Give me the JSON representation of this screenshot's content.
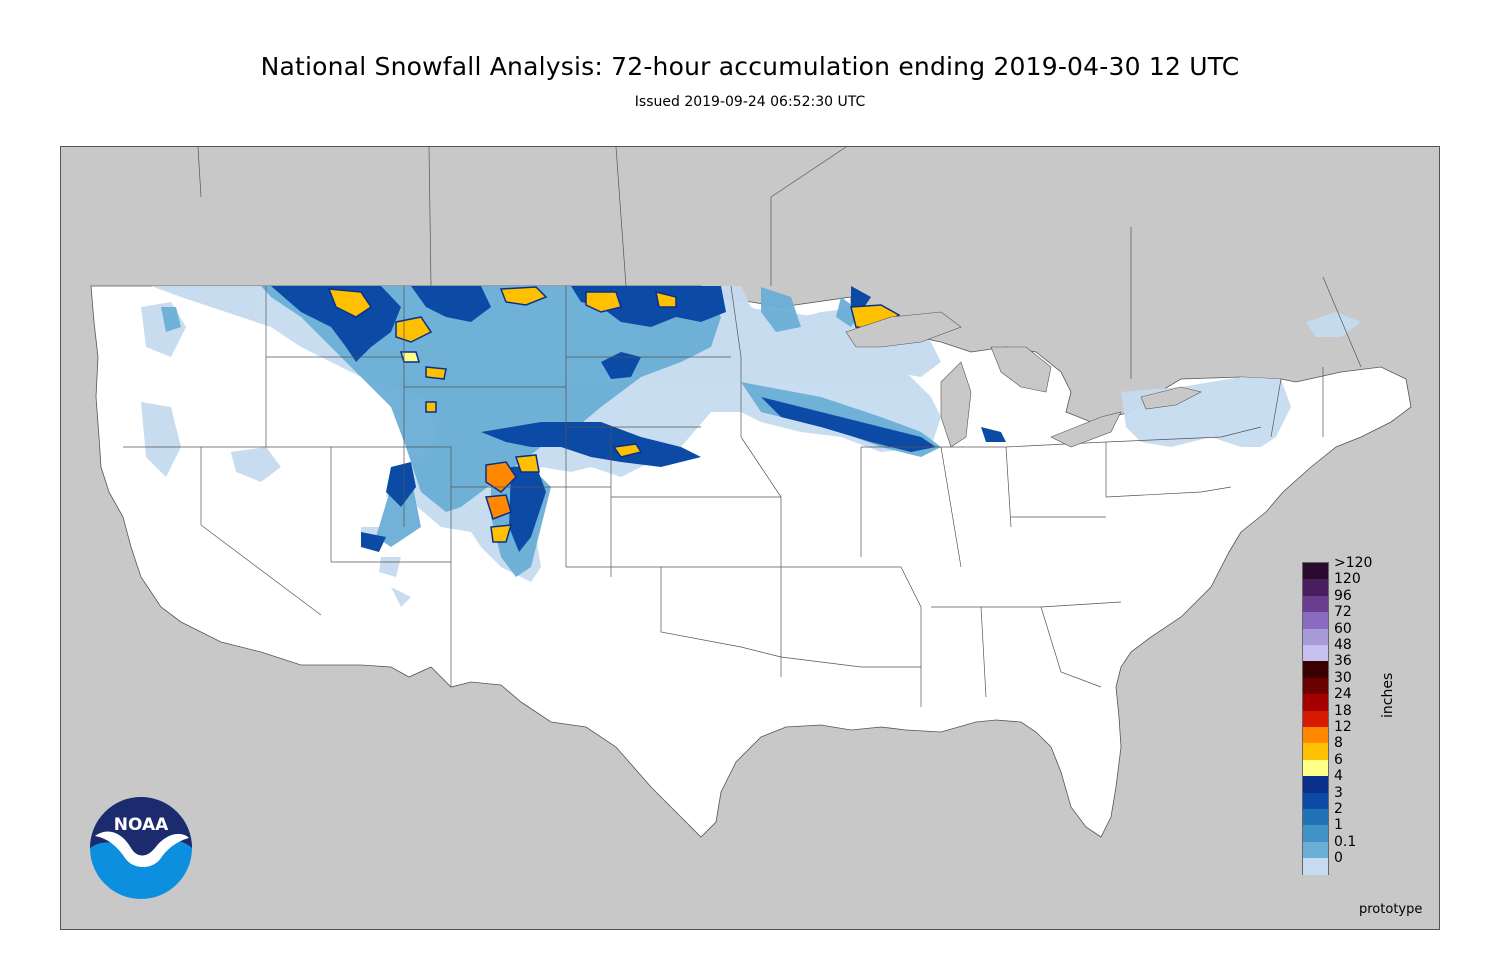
{
  "header": {
    "title": "National Snowfall Analysis: 72-hour accumulation ending 2019-04-30 12 UTC",
    "issued": "Issued 2019-09-24 06:52:30 UTC"
  },
  "legend": {
    "unit": "inches",
    "classes": [
      {
        "label": ">120",
        "color": "#2b0a2f"
      },
      {
        "label": "120",
        "color": "#4a1d5e"
      },
      {
        "label": "96",
        "color": "#6a3d8e"
      },
      {
        "label": "72",
        "color": "#8b6bbf"
      },
      {
        "label": "60",
        "color": "#a99ad8"
      },
      {
        "label": "48",
        "color": "#c6c0ee"
      },
      {
        "label": "36",
        "color": "#3a0000"
      },
      {
        "label": "30",
        "color": "#6b0000"
      },
      {
        "label": "24",
        "color": "#a50000"
      },
      {
        "label": "18",
        "color": "#d81a00"
      },
      {
        "label": "12",
        "color": "#ff8800"
      },
      {
        "label": "8",
        "color": "#ffc000"
      },
      {
        "label": "6",
        "color": "#ffff88"
      },
      {
        "label": "4",
        "color": "#0a2f8a"
      },
      {
        "label": "3",
        "color": "#0b4ba6"
      },
      {
        "label": "2",
        "color": "#2171b5"
      },
      {
        "label": "1",
        "color": "#4292c6"
      },
      {
        "label": "0.1",
        "color": "#6baed6"
      },
      {
        "label": "0",
        "color": "#c6dbef"
      }
    ],
    "bottom_color": "#ffffff",
    "zero_band_color": "#e6eef8"
  },
  "footer": {
    "note": "prototype"
  },
  "logo": {
    "text": "NOAA",
    "dark_blue": "#1c2b6e",
    "light_blue": "#0d8fe0"
  },
  "colors": {
    "land": "#ffffff",
    "outside": "#c8c8c8",
    "borders": "#555555"
  }
}
